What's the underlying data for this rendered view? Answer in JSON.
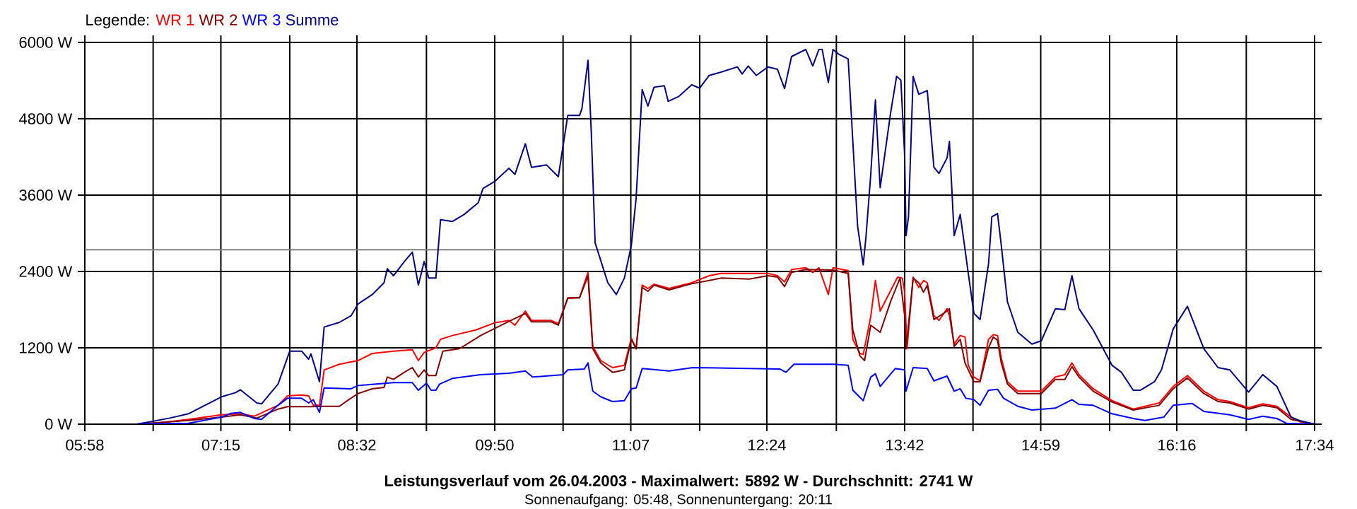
{
  "chart_data": {
    "type": "line",
    "title": "Leistungsverlauf vom 26.04.2003 - Maximalwert: 5892 W - Durchschnitt: 2741 W",
    "subtitle": "Sonnenaufgang: 05:48, Sonnenuntergang: 20:11",
    "legend_title": "Legende:",
    "legend": "top left",
    "grid": true,
    "line_style": "solid",
    "xlim": [
      5.9667,
      17.5667
    ],
    "ylim": [
      0,
      6000
    ],
    "xticks": [
      {
        "value": 5.9667,
        "label": "05:58"
      },
      {
        "value": 6.6111,
        "label": null
      },
      {
        "value": 7.25,
        "label": "07:15"
      },
      {
        "value": 7.9,
        "label": null
      },
      {
        "value": 8.5333,
        "label": "08:32"
      },
      {
        "value": 9.1889,
        "label": null
      },
      {
        "value": 9.8333,
        "label": "09:50"
      },
      {
        "value": 10.4778,
        "label": null
      },
      {
        "value": 11.1167,
        "label": "11:07"
      },
      {
        "value": 11.7667,
        "label": null
      },
      {
        "value": 12.4,
        "label": "12:24"
      },
      {
        "value": 13.0556,
        "label": null
      },
      {
        "value": 13.7,
        "label": "13:42"
      },
      {
        "value": 14.3444,
        "label": null
      },
      {
        "value": 14.9833,
        "label": "14:59"
      },
      {
        "value": 15.6333,
        "label": null
      },
      {
        "value": 16.2667,
        "label": "16:16"
      },
      {
        "value": 16.9222,
        "label": null
      },
      {
        "value": 17.5667,
        "label": "17:34"
      }
    ],
    "yticks": [
      {
        "value": 0,
        "label": "0 W"
      },
      {
        "value": 1200,
        "label": "1200 W"
      },
      {
        "value": 2400,
        "label": "2400 W"
      },
      {
        "value": 3600,
        "label": "3600 W"
      },
      {
        "value": 4800,
        "label": "4800 W"
      },
      {
        "value": 6000,
        "label": "6000 W"
      }
    ],
    "ref_lines": [
      {
        "axis": "y",
        "value": 2741,
        "color": "#808080"
      }
    ],
    "series": [
      {
        "name": "WR 1",
        "color": "#ff0000",
        "x": [
          6.456,
          6.633,
          6.944,
          7.256,
          7.433,
          7.567,
          7.789,
          7.878,
          8.011,
          8.078,
          8.122,
          8.18,
          8.224,
          8.367,
          8.544,
          8.678,
          8.878,
          9.056,
          9.113,
          9.167,
          9.278,
          9.322,
          9.433,
          9.656,
          9.833,
          9.967,
          10.024,
          10.122,
          10.18,
          10.367,
          10.433,
          10.522,
          10.633,
          10.713,
          10.758,
          10.833,
          10.944,
          11.056,
          11.122,
          11.167,
          11.224,
          11.278,
          11.336,
          11.478,
          11.691,
          11.856,
          11.967,
          12.411,
          12.5,
          12.567,
          12.633,
          12.767,
          12.833,
          12.891,
          12.98,
          13.024,
          13.167,
          13.211,
          13.278,
          13.309,
          13.38,
          13.424,
          13.469,
          13.633,
          13.678,
          13.7,
          13.722,
          13.78,
          13.833,
          13.878,
          13.913,
          13.976,
          14.024,
          14.1,
          14.122,
          14.167,
          14.224,
          14.269,
          14.3,
          14.353,
          14.411,
          14.491,
          14.536,
          14.576,
          14.611,
          14.669,
          14.767,
          14.989,
          15.122,
          15.211,
          15.278,
          15.344,
          15.478,
          15.656,
          15.856,
          16.1,
          16.233,
          16.367,
          16.522,
          16.656,
          16.767,
          16.944,
          17.078,
          17.211,
          17.344,
          17.433,
          17.5667
        ],
        "values": [
          0,
          15,
          74,
          148,
          163,
          126,
          296,
          444,
          459,
          444,
          296,
          296,
          852,
          941,
          1000,
          1111,
          1148,
          1170,
          1000,
          1126,
          1200,
          1333,
          1393,
          1481,
          1593,
          1630,
          1556,
          1778,
          1630,
          1630,
          1578,
          1978,
          1985,
          2385,
          1222,
          1000,
          889,
          926,
          1348,
          1185,
          2185,
          2133,
          2200,
          2133,
          2222,
          2333,
          2370,
          2370,
          2333,
          2237,
          2430,
          2459,
          2385,
          2459,
          2037,
          2459,
          2415,
          1333,
          1111,
          1096,
          1689,
          2259,
          1778,
          2311,
          2296,
          2074,
          1185,
          2311,
          2148,
          2259,
          2222,
          1704,
          1630,
          1815,
          1704,
          1259,
          1393,
          1370,
          926,
          741,
          681,
          1333,
          1407,
          1393,
          1037,
          667,
          519,
          519,
          741,
          778,
          963,
          778,
          556,
          370,
          237,
          333,
          593,
          763,
          519,
          385,
          356,
          259,
          319,
          281,
          111,
          37,
          0
        ]
      },
      {
        "name": "WR 2",
        "color": "#800000",
        "x": [
          6.456,
          6.944,
          7.256,
          7.433,
          7.589,
          7.789,
          7.878,
          8.1,
          8.224,
          8.367,
          8.456,
          8.544,
          8.678,
          8.789,
          8.82,
          8.878,
          8.98,
          9.056,
          9.113,
          9.167,
          9.211,
          9.278,
          9.344,
          9.5,
          9.7,
          9.833,
          9.967,
          10.122,
          10.18,
          10.367,
          10.433,
          10.522,
          10.633,
          10.713,
          10.758,
          10.833,
          10.944,
          11.056,
          11.122,
          11.167,
          11.224,
          11.278,
          11.336,
          11.478,
          11.691,
          11.856,
          11.967,
          12.233,
          12.411,
          12.5,
          12.567,
          12.633,
          12.767,
          13.024,
          13.167,
          13.211,
          13.278,
          13.322,
          13.38,
          13.469,
          13.567,
          13.656,
          13.7,
          13.713,
          13.78,
          13.833,
          13.878,
          13.913,
          13.976,
          14.1,
          14.122,
          14.167,
          14.224,
          14.269,
          14.353,
          14.411,
          14.491,
          14.536,
          14.576,
          14.611,
          14.669,
          14.767,
          14.989,
          15.122,
          15.211,
          15.278,
          15.344,
          15.478,
          15.656,
          15.856,
          16.1,
          16.233,
          16.367,
          16.522,
          16.656,
          16.767,
          16.944,
          17.078,
          17.211,
          17.344,
          17.5667
        ],
        "values": [
          0,
          59,
          111,
          148,
          96,
          237,
          274,
          274,
          281,
          281,
          385,
          481,
          556,
          578,
          741,
          704,
          815,
          889,
          741,
          852,
          763,
          763,
          1148,
          1185,
          1393,
          1504,
          1615,
          1741,
          1607,
          1607,
          1556,
          1985,
          1985,
          2333,
          1185,
          963,
          815,
          852,
          1333,
          1185,
          2148,
          2089,
          2185,
          2111,
          2207,
          2259,
          2296,
          2281,
          2333,
          2311,
          2163,
          2385,
          2430,
          2422,
          2370,
          1481,
          1074,
          1000,
          1556,
          1444,
          1926,
          2296,
          1704,
          1185,
          2296,
          2222,
          2074,
          2185,
          1644,
          1778,
          1815,
          1222,
          1333,
          963,
          667,
          667,
          1200,
          1370,
          1318,
          963,
          630,
          481,
          481,
          704,
          704,
          904,
          741,
          519,
          348,
          222,
          296,
          556,
          726,
          481,
          356,
          333,
          237,
          296,
          259,
          74,
          0
        ]
      },
      {
        "name": "WR 3",
        "color": "#0000ff",
        "x": [
          6.456,
          6.944,
          7.256,
          7.344,
          7.433,
          7.567,
          7.633,
          7.789,
          7.878,
          8.011,
          8.078,
          8.122,
          8.18,
          8.224,
          8.478,
          8.544,
          8.878,
          9.056,
          9.113,
          9.189,
          9.233,
          9.278,
          9.313,
          9.433,
          9.7,
          9.967,
          10.122,
          10.189,
          10.478,
          10.522,
          10.678,
          10.713,
          10.758,
          10.833,
          10.944,
          11.056,
          11.122,
          11.167,
          11.224,
          11.478,
          11.7,
          12.522,
          12.58,
          12.656,
          13.033,
          13.167,
          13.211,
          13.309,
          13.38,
          13.424,
          13.469,
          13.611,
          13.7,
          13.713,
          13.78,
          13.913,
          13.976,
          14.1,
          14.167,
          14.224,
          14.278,
          14.353,
          14.411,
          14.491,
          14.576,
          14.633,
          14.767,
          14.9,
          15.122,
          15.278,
          15.344,
          15.478,
          15.656,
          15.856,
          15.967,
          16.144,
          16.233,
          16.411,
          16.522,
          16.767,
          16.944,
          17.078,
          17.211,
          17.3,
          17.5667
        ],
        "values": [
          0,
          15,
          111,
          170,
          185,
          89,
          74,
          296,
          407,
          407,
          333,
          385,
          185,
          570,
          556,
          607,
          652,
          652,
          533,
          644,
          533,
          533,
          630,
          719,
          778,
          800,
          837,
          741,
          778,
          852,
          867,
          963,
          519,
          430,
          356,
          370,
          556,
          570,
          874,
          837,
          889,
          867,
          815,
          941,
          941,
          926,
          533,
          370,
          741,
          793,
          593,
          874,
          852,
          519,
          889,
          874,
          681,
          756,
          519,
          556,
          407,
          385,
          296,
          533,
          548,
          407,
          281,
          222,
          252,
          385,
          311,
          296,
          163,
          89,
          59,
          111,
          296,
          326,
          200,
          148,
          74,
          126,
          89,
          15,
          0
        ]
      },
      {
        "name": "Summe",
        "color": "#000080",
        "x": [
          6.456,
          6.633,
          6.767,
          6.944,
          7.256,
          7.389,
          7.433,
          7.589,
          7.633,
          7.789,
          7.9,
          8.011,
          8.078,
          8.1,
          8.18,
          8.224,
          8.367,
          8.478,
          8.544,
          8.678,
          8.789,
          8.82,
          8.878,
          8.98,
          9.056,
          9.113,
          9.167,
          9.211,
          9.278,
          9.322,
          9.433,
          9.544,
          9.678,
          9.722,
          9.833,
          9.967,
          10.024,
          10.122,
          10.18,
          10.322,
          10.433,
          10.522,
          10.633,
          10.656,
          10.713,
          10.744,
          10.78,
          10.9,
          10.98,
          11.056,
          11.122,
          11.167,
          11.224,
          11.278,
          11.336,
          11.433,
          11.469,
          11.567,
          11.691,
          11.767,
          11.856,
          11.967,
          12.122,
          12.167,
          12.224,
          12.3,
          12.411,
          12.5,
          12.567,
          12.633,
          12.767,
          12.833,
          12.891,
          12.922,
          12.98,
          13.024,
          13.078,
          13.167,
          13.211,
          13.256,
          13.309,
          13.336,
          13.38,
          13.424,
          13.469,
          13.567,
          13.624,
          13.664,
          13.7,
          13.713,
          13.736,
          13.78,
          13.833,
          13.913,
          13.976,
          14.024,
          14.1,
          14.122,
          14.167,
          14.224,
          14.3,
          14.353,
          14.411,
          14.491,
          14.522,
          14.576,
          14.611,
          14.669,
          14.767,
          14.9,
          14.989,
          15.122,
          15.211,
          15.278,
          15.344,
          15.478,
          15.656,
          15.744,
          15.856,
          15.922,
          16.056,
          16.122,
          16.233,
          16.367,
          16.522,
          16.656,
          16.767,
          16.944,
          17.078,
          17.211,
          17.344,
          17.433,
          17.5667
        ],
        "values": [
          0,
          52,
          96,
          163,
          430,
          496,
          541,
          333,
          319,
          630,
          1148,
          1148,
          1022,
          1104,
          667,
          1526,
          1600,
          1704,
          1889,
          2037,
          2222,
          2444,
          2333,
          2555,
          2704,
          2185,
          2555,
          2296,
          2296,
          3215,
          3185,
          3296,
          3481,
          3704,
          3815,
          4022,
          3926,
          4407,
          4037,
          4074,
          3889,
          4852,
          4852,
          4963,
          5719,
          4593,
          2852,
          2222,
          2037,
          2296,
          2815,
          3555,
          5259,
          5000,
          5296,
          5319,
          5074,
          5148,
          5333,
          5281,
          5481,
          5533,
          5615,
          5504,
          5630,
          5481,
          5615,
          5578,
          5274,
          5778,
          5889,
          5630,
          5889,
          5889,
          5370,
          5889,
          5815,
          5741,
          4444,
          3111,
          2504,
          2963,
          3926,
          5096,
          3718,
          4889,
          5467,
          5407,
          4222,
          2963,
          3259,
          5467,
          5185,
          5244,
          4037,
          3941,
          4185,
          4444,
          2963,
          3296,
          2370,
          1741,
          1644,
          2518,
          3259,
          3311,
          2815,
          1926,
          1444,
          1259,
          1311,
          1815,
          1800,
          2333,
          1815,
          1481,
          926,
          815,
          533,
          533,
          667,
          852,
          1496,
          1852,
          1185,
          889,
          852,
          504,
          778,
          593,
          111,
          52,
          0
        ]
      }
    ]
  }
}
